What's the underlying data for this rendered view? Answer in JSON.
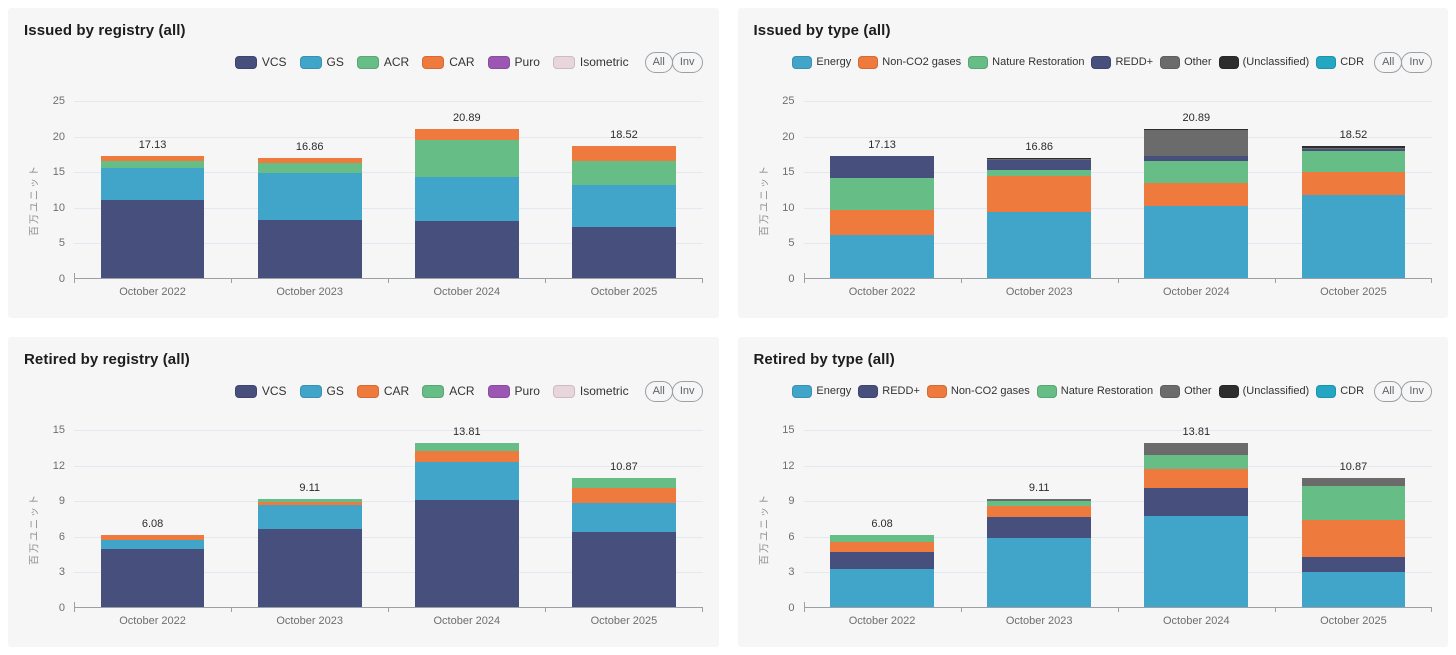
{
  "legend_buttons": {
    "all": "All",
    "inv": "Inv"
  },
  "axis": {
    "unit_label": "百万ユニット"
  },
  "chart_data": [
    {
      "type": "bar",
      "stacked": true,
      "title": "Issued by registry (all)",
      "ylabel": "百万ユニット",
      "xlabel": "",
      "categories": [
        "October 2022",
        "October 2023",
        "October 2024",
        "October 2025"
      ],
      "yticks": [
        0,
        5,
        10,
        15,
        20,
        25
      ],
      "ylim": [
        0,
        25
      ],
      "grid": true,
      "legend_position": "top-right",
      "totals": [
        17.13,
        16.86,
        20.89,
        18.52
      ],
      "series": [
        {
          "name": "VCS",
          "color": "#474f7d",
          "values": [
            10.9,
            8.1,
            8.0,
            7.2
          ]
        },
        {
          "name": "GS",
          "color": "#41a4c9",
          "values": [
            4.55,
            6.6,
            6.2,
            5.9
          ]
        },
        {
          "name": "ACR",
          "color": "#66bd85",
          "values": [
            0.95,
            1.4,
            5.2,
            3.3
          ]
        },
        {
          "name": "CAR",
          "color": "#ef7a3d",
          "values": [
            0.73,
            0.76,
            1.49,
            2.12
          ]
        },
        {
          "name": "Puro",
          "color": "#9c57b5",
          "values": [
            0,
            0,
            0,
            0
          ]
        },
        {
          "name": "Isometric",
          "color": "#e8d6dc",
          "values": [
            0,
            0,
            0,
            0
          ]
        }
      ]
    },
    {
      "type": "bar",
      "stacked": true,
      "title": "Issued by type (all)",
      "ylabel": "百万ユニット",
      "xlabel": "",
      "categories": [
        "October 2022",
        "October 2023",
        "October 2024",
        "October 2025"
      ],
      "yticks": [
        0,
        5,
        10,
        15,
        20,
        25
      ],
      "ylim": [
        0,
        25
      ],
      "grid": true,
      "legend_position": "top-right",
      "totals": [
        17.13,
        16.86,
        20.89,
        18.52
      ],
      "series": [
        {
          "name": "Energy",
          "color": "#41a4c9",
          "values": [
            6.1,
            9.3,
            10.1,
            11.65
          ]
        },
        {
          "name": "Non-CO2 gases",
          "color": "#ef7a3d",
          "values": [
            3.5,
            5.0,
            3.2,
            3.3
          ]
        },
        {
          "name": "Nature Restoration",
          "color": "#66bd85",
          "values": [
            4.4,
            0.9,
            3.1,
            2.95
          ]
        },
        {
          "name": "REDD+",
          "color": "#474f7d",
          "values": [
            3.1,
            1.35,
            0.7,
            0.2
          ]
        },
        {
          "name": "Other",
          "color": "#6b6b6b",
          "values": [
            0,
            0.1,
            3.7,
            0.1
          ]
        },
        {
          "name": "(Unclassified)",
          "color": "#2d2d2d",
          "values": [
            0.03,
            0.21,
            0.09,
            0.32
          ]
        },
        {
          "name": "CDR",
          "color": "#24a7c3",
          "values": [
            0,
            0,
            0,
            0
          ]
        }
      ]
    },
    {
      "type": "bar",
      "stacked": true,
      "title": "Retired by registry (all)",
      "ylabel": "百万ユニット",
      "xlabel": "",
      "categories": [
        "October 2022",
        "October 2023",
        "October 2024",
        "October 2025"
      ],
      "yticks": [
        0,
        3,
        6,
        9,
        12,
        15
      ],
      "ylim": [
        0,
        15
      ],
      "grid": true,
      "legend_position": "top-right",
      "totals": [
        6.08,
        9.11,
        13.81,
        10.87
      ],
      "series": [
        {
          "name": "VCS",
          "color": "#474f7d",
          "values": [
            4.85,
            6.6,
            9.0,
            6.3
          ]
        },
        {
          "name": "GS",
          "color": "#41a4c9",
          "values": [
            0.78,
            2.0,
            3.25,
            2.45
          ]
        },
        {
          "name": "CAR",
          "color": "#ef7a3d",
          "values": [
            0.45,
            0.21,
            0.86,
            1.27
          ]
        },
        {
          "name": "ACR",
          "color": "#66bd85",
          "values": [
            0,
            0.3,
            0.7,
            0.85
          ]
        },
        {
          "name": "Puro",
          "color": "#9c57b5",
          "values": [
            0,
            0,
            0,
            0
          ]
        },
        {
          "name": "Isometric",
          "color": "#e8d6dc",
          "values": [
            0,
            0,
            0,
            0
          ]
        }
      ]
    },
    {
      "type": "bar",
      "stacked": true,
      "title": "Retired by type (all)",
      "ylabel": "百万ユニット",
      "xlabel": "",
      "categories": [
        "October 2022",
        "October 2023",
        "October 2024",
        "October 2025"
      ],
      "yticks": [
        0,
        3,
        6,
        9,
        12,
        15
      ],
      "ylim": [
        0,
        15
      ],
      "grid": true,
      "legend_position": "top-right",
      "totals": [
        6.08,
        9.11,
        13.81,
        10.87
      ],
      "series": [
        {
          "name": "Energy",
          "color": "#41a4c9",
          "values": [
            3.2,
            5.85,
            7.65,
            2.95
          ]
        },
        {
          "name": "REDD+",
          "color": "#474f7d",
          "values": [
            1.45,
            1.7,
            2.35,
            1.25
          ]
        },
        {
          "name": "Non-CO2 gases",
          "color": "#ef7a3d",
          "values": [
            0.85,
            1.0,
            1.6,
            3.15
          ]
        },
        {
          "name": "Nature Restoration",
          "color": "#66bd85",
          "values": [
            0.58,
            0.4,
            1.2,
            2.85
          ]
        },
        {
          "name": "Other",
          "color": "#6b6b6b",
          "values": [
            0,
            0.16,
            1.01,
            0.67
          ]
        },
        {
          "name": "(Unclassified)",
          "color": "#2d2d2d",
          "values": [
            0,
            0,
            0,
            0
          ]
        },
        {
          "name": "CDR",
          "color": "#24a7c3",
          "values": [
            0,
            0,
            0,
            0
          ]
        }
      ]
    }
  ]
}
